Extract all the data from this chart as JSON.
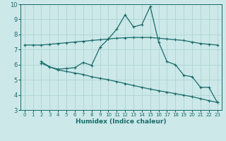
{
  "xlabel": "Humidex (Indice chaleur)",
  "bg_color": "#cce8e8",
  "line_color": "#1a6b6b",
  "grid_color": "#b0d8d8",
  "xlim": [
    -0.5,
    23.5
  ],
  "ylim": [
    3,
    10
  ],
  "xticks": [
    0,
    1,
    2,
    3,
    4,
    5,
    6,
    7,
    8,
    9,
    10,
    11,
    12,
    13,
    14,
    15,
    16,
    17,
    18,
    19,
    20,
    21,
    22,
    23
  ],
  "yticks": [
    3,
    4,
    5,
    6,
    7,
    8,
    9,
    10
  ],
  "line1_x": [
    0,
    1,
    2,
    3,
    4,
    5,
    6,
    7,
    8,
    9,
    10,
    11,
    12,
    13,
    14,
    15,
    16,
    17,
    18,
    19,
    20,
    21,
    22,
    23
  ],
  "line1_y": [
    7.3,
    7.3,
    7.3,
    7.35,
    7.4,
    7.45,
    7.5,
    7.55,
    7.6,
    7.65,
    7.7,
    7.75,
    7.78,
    7.8,
    7.8,
    7.8,
    7.75,
    7.7,
    7.65,
    7.6,
    7.5,
    7.4,
    7.35,
    7.3
  ],
  "line2_x": [
    2,
    3,
    4,
    5,
    6,
    7,
    8,
    9,
    10,
    11,
    12,
    13,
    14,
    15,
    16,
    17,
    18,
    19,
    20,
    21,
    22,
    23
  ],
  "line2_y": [
    6.2,
    5.85,
    5.7,
    5.75,
    5.8,
    6.15,
    5.95,
    7.15,
    7.7,
    8.35,
    9.3,
    8.5,
    8.65,
    9.85,
    7.5,
    6.2,
    6.0,
    5.3,
    5.2,
    4.5,
    4.5,
    3.5
  ],
  "line3_x": [
    2,
    3,
    4,
    5,
    6,
    7,
    8,
    9,
    10,
    11,
    12,
    13,
    14,
    15,
    16,
    17,
    18,
    19,
    20,
    21,
    22,
    23
  ],
  "line3_y": [
    6.1,
    5.85,
    5.65,
    5.55,
    5.45,
    5.35,
    5.2,
    5.1,
    5.0,
    4.88,
    4.75,
    4.62,
    4.5,
    4.38,
    4.28,
    4.18,
    4.08,
    3.98,
    3.88,
    3.75,
    3.62,
    3.5
  ]
}
